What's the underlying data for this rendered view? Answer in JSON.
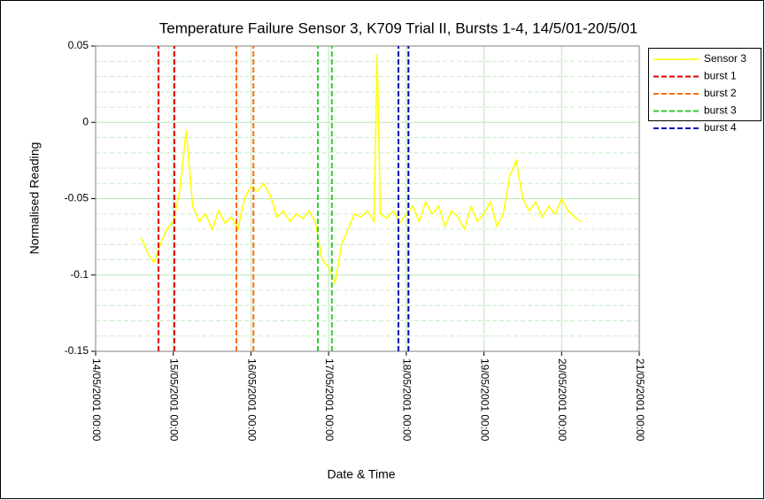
{
  "chart_data": {
    "type": "line",
    "title": "Temperature Failure Sensor 3, K709 Trial II, Bursts 1-4, 14/5/01-20/5/01",
    "xlabel": "Date & Time",
    "ylabel": "Normalised Reading",
    "xlim": [
      "2001-05-14T00:00",
      "2001-05-21T00:00"
    ],
    "xticks": [
      {
        "value": "2001-05-14T00:00",
        "label": "14/05/2001 00:00"
      },
      {
        "value": "2001-05-15T00:00",
        "label": "15/05/2001 00:00"
      },
      {
        "value": "2001-05-16T00:00",
        "label": "16/05/2001 00:00"
      },
      {
        "value": "2001-05-17T00:00",
        "label": "17/05/2001 00:00"
      },
      {
        "value": "2001-05-18T00:00",
        "label": "18/05/2001 00:00"
      },
      {
        "value": "2001-05-19T00:00",
        "label": "19/05/2001 00:00"
      },
      {
        "value": "2001-05-20T00:00",
        "label": "20/05/2001 00:00"
      },
      {
        "value": "2001-05-21T00:00",
        "label": "21/05/2001 00:00"
      }
    ],
    "ylim": [
      -0.15,
      0.05
    ],
    "yticks": [
      0.05,
      0,
      -0.05,
      -0.1,
      -0.15
    ],
    "grid": true,
    "y_minor_divisions": 5,
    "legend": "right",
    "series": [
      {
        "name": "Sensor 3",
        "color": "#ffff00",
        "dash": false,
        "x": [
          "2001-05-14T14:00",
          "2001-05-14T16:00",
          "2001-05-14T18:00",
          "2001-05-14T20:00",
          "2001-05-14T22:00",
          "2001-05-15T00:00",
          "2001-05-15T02:00",
          "2001-05-15T04:00",
          "2001-05-15T06:00",
          "2001-05-15T08:00",
          "2001-05-15T10:00",
          "2001-05-15T12:00",
          "2001-05-15T14:00",
          "2001-05-15T16:00",
          "2001-05-15T18:00",
          "2001-05-15T20:00",
          "2001-05-15T22:00",
          "2001-05-16T00:00",
          "2001-05-16T02:00",
          "2001-05-16T04:00",
          "2001-05-16T06:00",
          "2001-05-16T08:00",
          "2001-05-16T10:00",
          "2001-05-16T12:00",
          "2001-05-16T14:00",
          "2001-05-16T16:00",
          "2001-05-16T18:00",
          "2001-05-16T20:00",
          "2001-05-16T22:00",
          "2001-05-17T00:00",
          "2001-05-17T02:00",
          "2001-05-17T04:00",
          "2001-05-17T06:00",
          "2001-05-17T08:00",
          "2001-05-17T10:00",
          "2001-05-17T12:00",
          "2001-05-17T14:00",
          "2001-05-17T15:00",
          "2001-05-17T16:00",
          "2001-05-17T18:00",
          "2001-05-17T20:00",
          "2001-05-17T22:00",
          "2001-05-18T00:00",
          "2001-05-18T02:00",
          "2001-05-18T04:00",
          "2001-05-18T06:00",
          "2001-05-18T08:00",
          "2001-05-18T10:00",
          "2001-05-18T12:00",
          "2001-05-18T14:00",
          "2001-05-18T16:00",
          "2001-05-18T18:00",
          "2001-05-18T20:00",
          "2001-05-18T22:00",
          "2001-05-19T00:00",
          "2001-05-19T02:00",
          "2001-05-19T04:00",
          "2001-05-19T06:00",
          "2001-05-19T08:00",
          "2001-05-19T10:00",
          "2001-05-19T12:00",
          "2001-05-19T14:00",
          "2001-05-19T16:00",
          "2001-05-19T18:00",
          "2001-05-19T20:00",
          "2001-05-19T22:00",
          "2001-05-20T00:00",
          "2001-05-20T02:00",
          "2001-05-20T04:00",
          "2001-05-20T06:00"
        ],
        "values": [
          -0.075,
          -0.085,
          -0.092,
          -0.08,
          -0.07,
          -0.065,
          -0.045,
          -0.005,
          -0.055,
          -0.065,
          -0.06,
          -0.07,
          -0.058,
          -0.066,
          -0.062,
          -0.07,
          -0.05,
          -0.042,
          -0.045,
          -0.04,
          -0.048,
          -0.062,
          -0.058,
          -0.065,
          -0.06,
          -0.063,
          -0.058,
          -0.066,
          -0.09,
          -0.095,
          -0.105,
          -0.08,
          -0.07,
          -0.06,
          -0.062,
          -0.058,
          -0.065,
          0.045,
          -0.06,
          -0.063,
          -0.058,
          -0.066,
          -0.06,
          -0.055,
          -0.065,
          -0.052,
          -0.06,
          -0.055,
          -0.068,
          -0.058,
          -0.062,
          -0.07,
          -0.055,
          -0.065,
          -0.06,
          -0.052,
          -0.068,
          -0.06,
          -0.035,
          -0.025,
          -0.05,
          -0.058,
          -0.052,
          -0.062,
          -0.055,
          -0.06,
          -0.05,
          -0.058,
          -0.062,
          -0.065
        ]
      },
      {
        "name": "burst 1",
        "color": "#e00000",
        "dash": true,
        "x": [
          "2001-05-14T19:25",
          "2001-05-14T19:25",
          null,
          "2001-05-15T00:20",
          "2001-05-15T00:20"
        ],
        "values": [
          -0.15,
          0.05,
          null,
          -0.15,
          0.05
        ]
      },
      {
        "name": "burst 2",
        "color": "#ff6a10",
        "dash": true,
        "x": [
          "2001-05-15T19:30",
          "2001-05-15T19:30",
          null,
          "2001-05-16T00:45",
          "2001-05-16T00:45"
        ],
        "values": [
          -0.15,
          0.05,
          null,
          -0.15,
          0.05
        ]
      },
      {
        "name": "burst 3",
        "color": "#33cc33",
        "dash": true,
        "x": [
          "2001-05-16T20:40",
          "2001-05-16T20:40",
          null,
          "2001-05-17T01:00",
          "2001-05-17T01:00"
        ],
        "values": [
          -0.15,
          0.05,
          null,
          -0.15,
          0.05
        ]
      },
      {
        "name": "burst 4",
        "color": "#0000c0",
        "dash": true,
        "x": [
          "2001-05-17T21:35",
          "2001-05-17T21:35",
          null,
          "2001-05-18T00:40",
          "2001-05-18T00:40"
        ],
        "values": [
          -0.15,
          0.05,
          null,
          -0.15,
          0.05
        ]
      }
    ]
  }
}
